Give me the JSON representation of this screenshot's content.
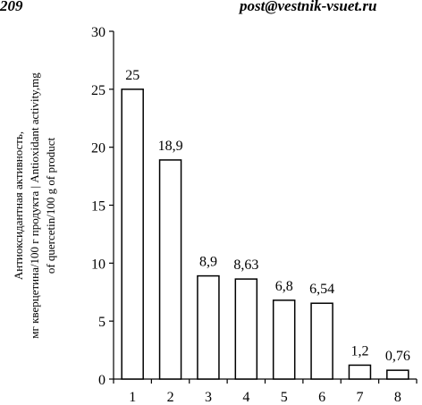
{
  "header": {
    "page_number": "209",
    "email": "post@vestnik-vsuet.ru"
  },
  "chart_data": {
    "type": "bar",
    "categories": [
      "1",
      "2",
      "3",
      "4",
      "5",
      "6",
      "7",
      "8"
    ],
    "values": [
      25,
      18.9,
      8.9,
      8.63,
      6.8,
      6.54,
      1.2,
      0.76
    ],
    "value_labels": [
      "25",
      "18,9",
      "8,9",
      "8,63",
      "6,8",
      "6,54",
      "1,2",
      "0,76"
    ],
    "ylabel_lines": [
      "Антиоксидантная активность,",
      "мг кверцетина/100 г продукта | Antioxidant activity,mg",
      "of quercetin/100 g of product"
    ],
    "yticks": [
      0,
      5,
      10,
      15,
      20,
      25,
      30
    ],
    "ylim": [
      0,
      30
    ],
    "grid": false,
    "bar_color": "#ffffff",
    "bar_edge_color": "#000000"
  }
}
